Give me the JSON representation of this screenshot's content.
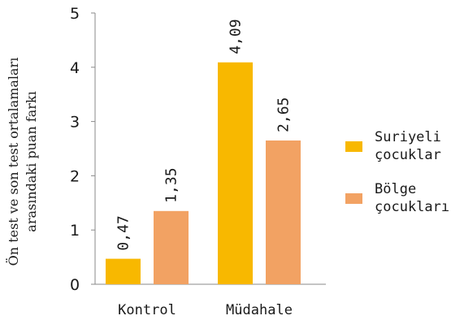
{
  "chart_data": {
    "type": "bar",
    "title": "",
    "xlabel": "",
    "ylabel": [
      "Ön test ve son test ortalamaları",
      "arasındaki puan farkı"
    ],
    "ylim": [
      0,
      5
    ],
    "yticks": [
      "0",
      "1",
      "2",
      "3",
      "4",
      "5"
    ],
    "categories": [
      "Kontrol",
      "Müdahale"
    ],
    "series": [
      {
        "name": [
          "Suriyeli",
          "çocuklar"
        ],
        "color": "#f8b800",
        "values": [
          0.47,
          4.09
        ],
        "labels": [
          "0,47",
          "4,09"
        ]
      },
      {
        "name": [
          "Bölge",
          "çocukları"
        ],
        "color": "#f2a263",
        "values": [
          1.35,
          2.65
        ],
        "labels": [
          "1,35",
          "2,65"
        ]
      }
    ],
    "grid": false,
    "legend": "right"
  }
}
